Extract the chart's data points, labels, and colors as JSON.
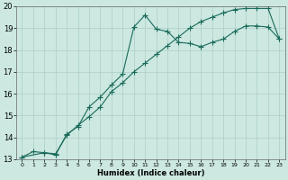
{
  "xlabel": "Humidex (Indice chaleur)",
  "bg_color": "#cce8e0",
  "grid_color": "#aacfc8",
  "line_color": "#1a6b5c",
  "xlim": [
    -0.5,
    23.5
  ],
  "ylim": [
    13,
    20
  ],
  "xticks": [
    0,
    1,
    2,
    3,
    4,
    5,
    6,
    7,
    8,
    9,
    10,
    11,
    12,
    13,
    14,
    15,
    16,
    17,
    18,
    19,
    20,
    21,
    22,
    23
  ],
  "yticks": [
    13,
    14,
    15,
    16,
    17,
    18,
    19,
    20
  ],
  "series1_x": [
    0,
    1,
    2,
    3,
    4,
    5,
    6,
    7,
    8,
    9,
    10,
    11,
    12,
    13,
    14,
    15,
    16,
    17,
    18,
    19,
    20,
    21,
    22,
    23
  ],
  "series1_y": [
    13.1,
    13.35,
    13.3,
    13.25,
    14.1,
    14.55,
    14.95,
    15.4,
    16.1,
    16.5,
    17.0,
    17.4,
    17.8,
    18.2,
    18.6,
    19.0,
    19.3,
    19.5,
    19.7,
    19.85,
    19.9,
    19.9,
    19.9,
    18.5
  ],
  "series2_x": [
    0,
    2,
    3,
    4,
    5,
    6,
    7,
    8,
    9,
    10,
    11,
    12,
    13,
    14,
    15,
    16,
    17,
    18,
    19,
    20,
    21,
    22,
    23
  ],
  "series2_y": [
    13.1,
    13.3,
    13.2,
    14.15,
    14.5,
    15.4,
    15.85,
    16.4,
    16.9,
    19.05,
    19.6,
    18.95,
    18.85,
    18.35,
    18.3,
    18.15,
    18.35,
    18.5,
    18.85,
    19.1,
    19.1,
    19.05,
    18.5
  ],
  "marker": "+",
  "markersize": 4,
  "linewidth": 0.8
}
